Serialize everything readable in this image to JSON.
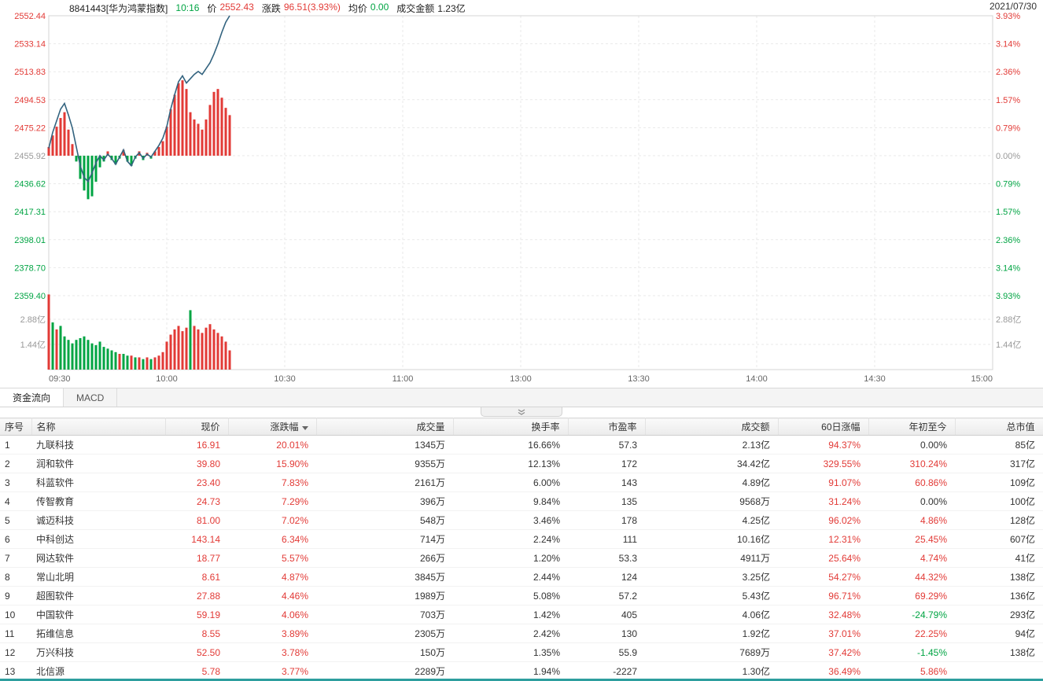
{
  "colors": {
    "up": "#e23a36",
    "down": "#00a443",
    "line": "#33637f",
    "axis_gray": "#999999",
    "accent": "#2d9e9e",
    "grid": "#e9e9e9"
  },
  "header": {
    "code_name": "8841443[华为鸿蒙指数]",
    "time": "10:16",
    "price_label": "价",
    "price": "2552.43",
    "change_label": "涨跌",
    "change": "96.51(3.93%)",
    "avg_label": "均价",
    "avg": "0.00",
    "turnover_label": "成交金额",
    "turnover": "1.23亿",
    "date": "2021/07/30"
  },
  "chart_data": {
    "type": "line",
    "title": "华为鸿蒙指数 分时走势",
    "x_ticks": [
      "09:30",
      "10:00",
      "10:30",
      "11:00",
      "13:00",
      "13:30",
      "14:00",
      "14:30",
      "15:00"
    ],
    "left_axis": [
      "2552.44",
      "2533.14",
      "2513.83",
      "2494.53",
      "2475.22",
      "2455.92",
      "2436.62",
      "2417.31",
      "2398.01",
      "2378.70",
      "2359.40"
    ],
    "right_axis": [
      "3.93%",
      "3.14%",
      "2.36%",
      "1.57%",
      "0.79%",
      "0.00%",
      "0.79%",
      "1.57%",
      "2.36%",
      "3.14%",
      "3.93%"
    ],
    "vol_axis": [
      "2.88亿",
      "1.44亿"
    ],
    "baseline": 2455.92,
    "ylim": [
      2359.4,
      2552.44
    ],
    "pct_lim": [
      -3.93,
      3.93
    ],
    "times": [
      "09:30",
      "09:31",
      "09:32",
      "09:33",
      "09:34",
      "09:35",
      "09:36",
      "09:37",
      "09:38",
      "09:39",
      "09:40",
      "09:41",
      "09:42",
      "09:43",
      "09:44",
      "09:45",
      "09:46",
      "09:47",
      "09:48",
      "09:49",
      "09:50",
      "09:51",
      "09:52",
      "09:53",
      "09:54",
      "09:55",
      "09:56",
      "09:57",
      "09:58",
      "09:59",
      "10:00",
      "10:01",
      "10:02",
      "10:03",
      "10:04",
      "10:05",
      "10:06",
      "10:07",
      "10:08",
      "10:09",
      "10:10",
      "10:11",
      "10:12",
      "10:13",
      "10:14",
      "10:15",
      "10:16"
    ],
    "price": [
      2461,
      2472,
      2480,
      2488,
      2492,
      2484,
      2475,
      2462,
      2449,
      2441,
      2438,
      2444,
      2451,
      2456,
      2453,
      2457,
      2454,
      2450,
      2455,
      2460,
      2452,
      2449,
      2455,
      2458,
      2454,
      2457,
      2455,
      2459,
      2463,
      2468,
      2476,
      2488,
      2498,
      2507,
      2511,
      2506,
      2509,
      2512,
      2514,
      2512,
      2516,
      2520,
      2526,
      2533,
      2541,
      2548,
      2552.43
    ],
    "delta_bars": [
      6,
      14,
      20,
      26,
      30,
      18,
      8,
      -4,
      -16,
      -24,
      -30,
      -28,
      -18,
      -8,
      -4,
      3,
      -3,
      -6,
      -2,
      4,
      -4,
      -7,
      -2,
      3,
      -3,
      2,
      -2,
      3,
      6,
      10,
      20,
      32,
      42,
      50,
      52,
      46,
      30,
      25,
      22,
      18,
      25,
      35,
      44,
      46,
      40,
      33,
      28
    ],
    "volume": [
      4.3,
      2.7,
      2.3,
      2.5,
      1.9,
      1.7,
      1.5,
      1.7,
      1.8,
      1.9,
      1.7,
      1.5,
      1.4,
      1.6,
      1.3,
      1.2,
      1.1,
      1.0,
      0.9,
      0.9,
      0.8,
      0.8,
      0.7,
      0.7,
      0.6,
      0.7,
      0.6,
      0.7,
      0.8,
      1.0,
      1.6,
      2.0,
      2.3,
      2.5,
      2.2,
      2.4,
      3.4,
      2.5,
      2.3,
      2.1,
      2.4,
      2.6,
      2.3,
      2.1,
      1.9,
      1.6,
      1.1
    ],
    "volume_dir": [
      "u",
      "d",
      "u",
      "d",
      "d",
      "d",
      "d",
      "d",
      "d",
      "d",
      "d",
      "d",
      "d",
      "d",
      "d",
      "d",
      "d",
      "d",
      "u",
      "d",
      "d",
      "u",
      "d",
      "u",
      "d",
      "u",
      "d",
      "u",
      "u",
      "u",
      "u",
      "u",
      "u",
      "u",
      "u",
      "u",
      "d",
      "u",
      "u",
      "u",
      "u",
      "u",
      "u",
      "u",
      "u",
      "u",
      "u"
    ]
  },
  "tabs": [
    {
      "label": "资金流向",
      "active": true
    },
    {
      "label": "MACD",
      "active": false
    }
  ],
  "table": {
    "columns": [
      "序号",
      "名称",
      "现价",
      "涨跌幅",
      "成交量",
      "换手率",
      "市盈率",
      "成交额",
      "60日涨幅",
      "年初至今",
      "总市值"
    ],
    "sort": {
      "column_index": 3,
      "direction": "desc"
    },
    "col_styles": [
      "plain",
      "name",
      "up",
      "up",
      "plain",
      "plain",
      "plain",
      "plain",
      "up",
      "signed",
      "plain"
    ],
    "rows": [
      [
        "1",
        "九联科技",
        "16.91",
        "20.01%",
        "1345万",
        "16.66%",
        "57.3",
        "2.13亿",
        "94.37%",
        "0.00%",
        "85亿"
      ],
      [
        "2",
        "润和软件",
        "39.80",
        "15.90%",
        "9355万",
        "12.13%",
        "172",
        "34.42亿",
        "329.55%",
        "310.24%",
        "317亿"
      ],
      [
        "3",
        "科蓝软件",
        "23.40",
        "7.83%",
        "2161万",
        "6.00%",
        "143",
        "4.89亿",
        "91.07%",
        "60.86%",
        "109亿"
      ],
      [
        "4",
        "传智教育",
        "24.73",
        "7.29%",
        "396万",
        "9.84%",
        "135",
        "9568万",
        "31.24%",
        "0.00%",
        "100亿"
      ],
      [
        "5",
        "诚迈科技",
        "81.00",
        "7.02%",
        "548万",
        "3.46%",
        "178",
        "4.25亿",
        "96.02%",
        "4.86%",
        "128亿"
      ],
      [
        "6",
        "中科创达",
        "143.14",
        "6.34%",
        "714万",
        "2.24%",
        "111",
        "10.16亿",
        "12.31%",
        "25.45%",
        "607亿"
      ],
      [
        "7",
        "网达软件",
        "18.77",
        "5.57%",
        "266万",
        "1.20%",
        "53.3",
        "4911万",
        "25.64%",
        "4.74%",
        "41亿"
      ],
      [
        "8",
        "常山北明",
        "8.61",
        "4.87%",
        "3845万",
        "2.44%",
        "124",
        "3.25亿",
        "54.27%",
        "44.32%",
        "138亿"
      ],
      [
        "9",
        "超图软件",
        "27.88",
        "4.46%",
        "1989万",
        "5.08%",
        "57.2",
        "5.43亿",
        "96.71%",
        "69.29%",
        "136亿"
      ],
      [
        "10",
        "中国软件",
        "59.19",
        "4.06%",
        "703万",
        "1.42%",
        "405",
        "4.06亿",
        "32.48%",
        "-24.79%",
        "293亿"
      ],
      [
        "11",
        "拓维信息",
        "8.55",
        "3.89%",
        "2305万",
        "2.42%",
        "130",
        "1.92亿",
        "37.01%",
        "22.25%",
        "94亿"
      ],
      [
        "12",
        "万兴科技",
        "52.50",
        "3.78%",
        "150万",
        "1.35%",
        "55.9",
        "7689万",
        "37.42%",
        "-1.45%",
        "138亿"
      ],
      [
        "13",
        "北信源",
        "5.78",
        "3.77%",
        "2289万",
        "1.94%",
        "-2227",
        "1.30亿",
        "36.49%",
        "5.86%",
        ""
      ]
    ]
  }
}
